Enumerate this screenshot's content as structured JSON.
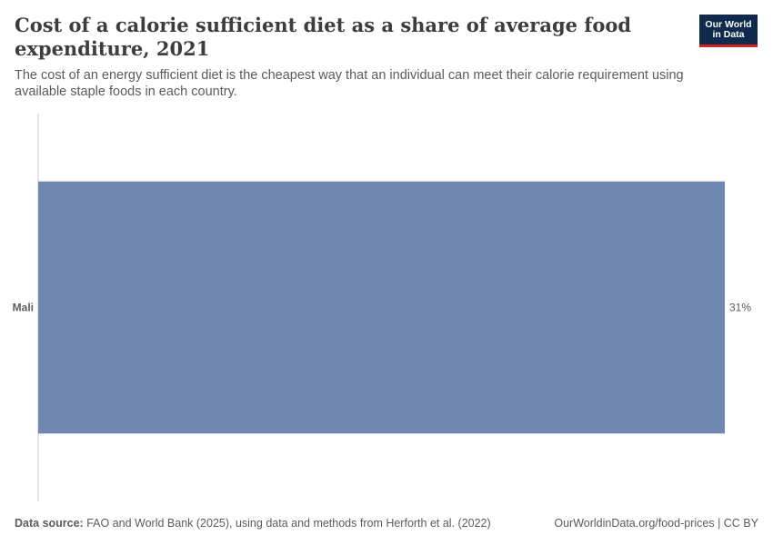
{
  "header": {
    "title": "Cost of a calorie sufficient diet as a share of average food expenditure, 2021",
    "subtitle": "The cost of an energy sufficient diet is the cheapest way that an individual can meet their calorie requirement using available staple foods in each country."
  },
  "logo": {
    "line1": "Our World",
    "line2": "in Data"
  },
  "footer": {
    "source_label": "Data source:",
    "source_text": "FAO and World Bank (2025), using data and methods from Herforth et al. (2022)",
    "url_license": "OurWorldinData.org/food-prices | CC BY"
  },
  "colors": {
    "bar": "#7088b1",
    "axis": "#dcdcdc"
  },
  "chart_data": {
    "type": "bar",
    "orientation": "horizontal",
    "categories": [
      "Mali"
    ],
    "values": [
      31
    ],
    "value_labels": [
      "31%"
    ],
    "unit": "%",
    "xlim": [
      0,
      31
    ],
    "grid": false,
    "legend": "none"
  }
}
